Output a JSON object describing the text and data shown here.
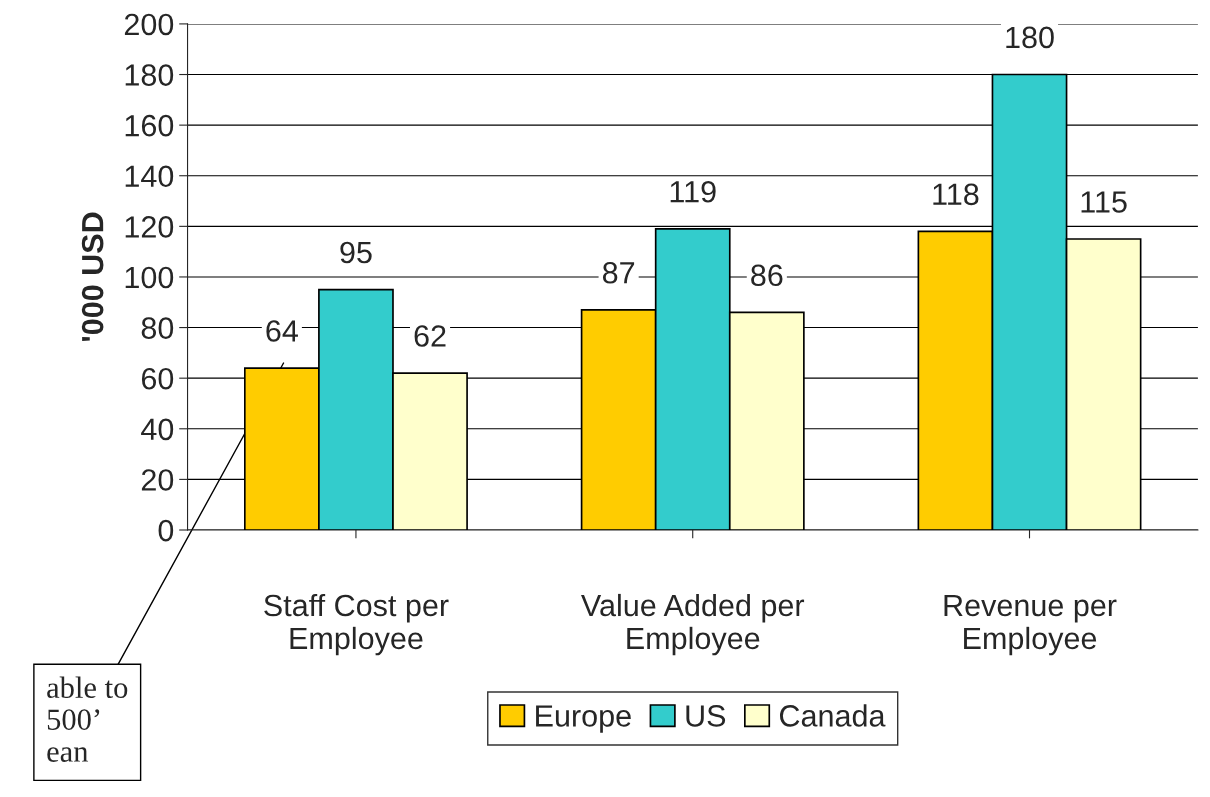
{
  "chart_data": {
    "type": "bar",
    "ylabel": "'000 USD",
    "categories": [
      "Staff Cost per\nEmployee",
      "Value Added per\nEmployee",
      "Revenue per\nEmployee"
    ],
    "series": [
      {
        "name": "Europe",
        "color": "#ffcc00",
        "values": [
          64,
          87,
          118
        ]
      },
      {
        "name": "US",
        "color": "#33cccc",
        "values": [
          95,
          119,
          180
        ]
      },
      {
        "name": "Canada",
        "color": "#ffffcc",
        "values": [
          62,
          86,
          115
        ]
      }
    ],
    "ylim": [
      0,
      200
    ],
    "yticks": [
      0,
      20,
      40,
      60,
      80,
      100,
      120,
      140,
      160,
      180,
      200
    ],
    "grid": "y",
    "legend": "bottom",
    "data_labels": true,
    "annotations": [
      "able to\n500’\nean"
    ]
  }
}
